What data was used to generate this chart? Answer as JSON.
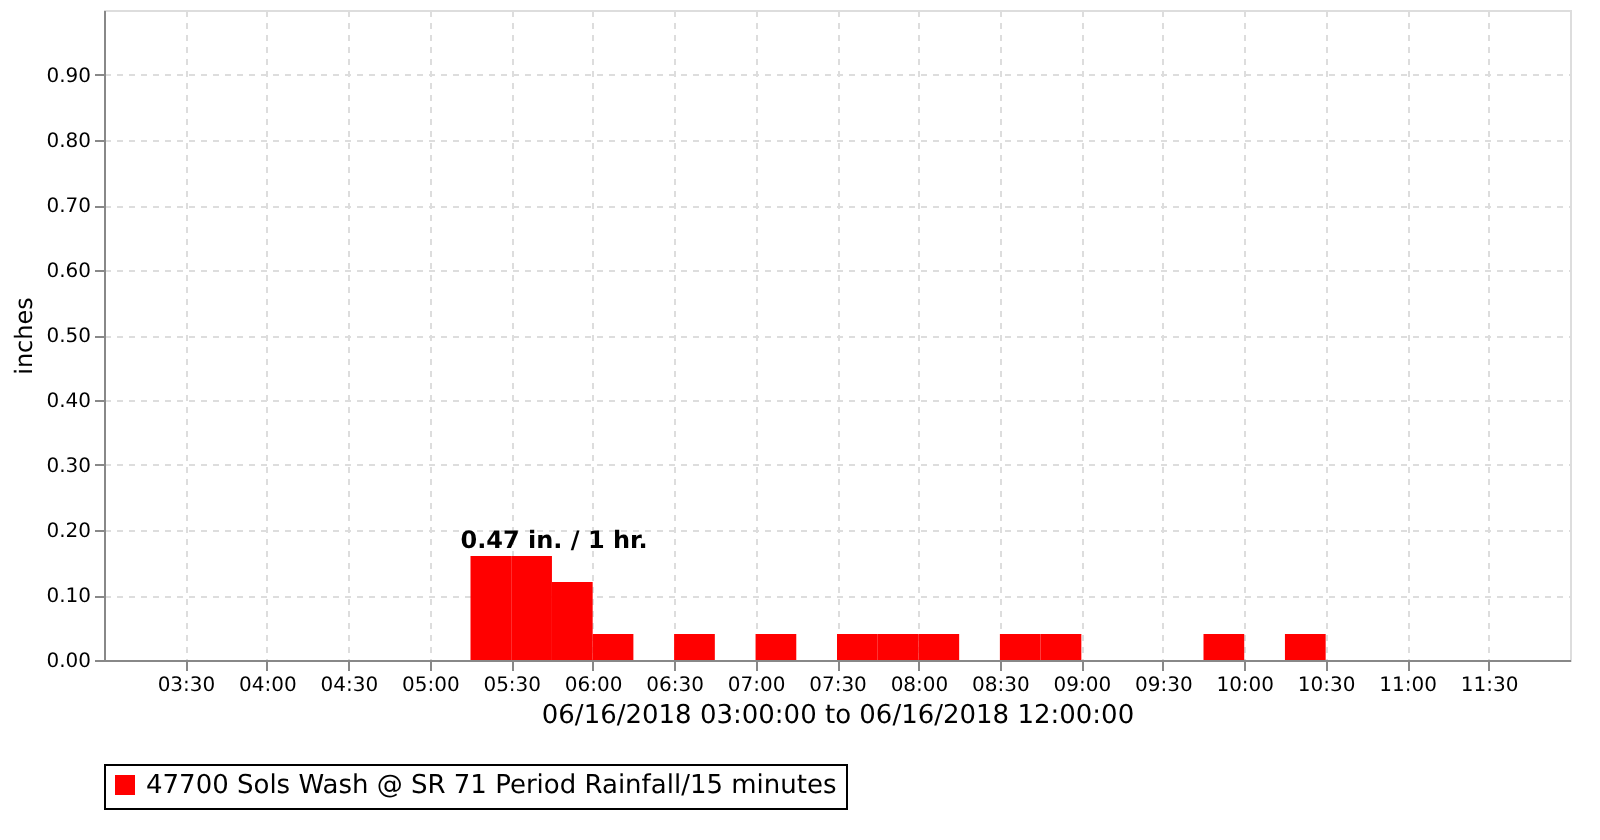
{
  "chart_data": {
    "type": "histogram",
    "xlabel": "06/16/2018 03:00:00 to 06/16/2018 12:00:00",
    "ylabel": "inches",
    "bins": [
      5.25,
      5.5,
      5.75,
      6.0,
      6.25,
      6.5,
      6.75,
      7.0,
      7.25,
      7.5,
      7.75,
      8.0,
      8.25,
      8.5,
      8.75,
      9.0,
      9.25,
      9.5,
      9.75,
      10.0,
      10.25,
      10.5
    ],
    "series": [
      {
        "name": "47700 Sols Wash @ SR 71 Period Rainfall/15 minutes",
        "color": "#ff0000",
        "values": [
          0.16,
          0.16,
          0.12,
          0.04,
          0,
          0.04,
          0,
          0.04,
          0,
          0.04,
          0.04,
          0.04,
          0,
          0.04,
          0.04,
          0,
          0,
          0,
          0.04,
          0,
          0.04
        ]
      }
    ],
    "xlim": [
      3,
      12
    ],
    "xticks": [
      {
        "value": 3.5,
        "label": "03:30"
      },
      {
        "value": 4,
        "label": "04:00"
      },
      {
        "value": 4.5,
        "label": "04:30"
      },
      {
        "value": 5,
        "label": "05:00"
      },
      {
        "value": 5.5,
        "label": "05:30"
      },
      {
        "value": 6,
        "label": "06:00"
      },
      {
        "value": 6.5,
        "label": "06:30"
      },
      {
        "value": 7,
        "label": "07:00"
      },
      {
        "value": 7.5,
        "label": "07:30"
      },
      {
        "value": 8,
        "label": "08:00"
      },
      {
        "value": 8.5,
        "label": "08:30"
      },
      {
        "value": 9,
        "label": "09:00"
      },
      {
        "value": 9.5,
        "label": "09:30"
      },
      {
        "value": 10,
        "label": "10:00"
      },
      {
        "value": 10.5,
        "label": "10:30"
      },
      {
        "value": 11,
        "label": "11:00"
      },
      {
        "value": 11.5,
        "label": "11:30"
      }
    ],
    "ylim": [
      0,
      1.0
    ],
    "yticks": [
      {
        "value": 0,
        "label": "0.00"
      },
      {
        "value": 0.1,
        "label": "0.10"
      },
      {
        "value": 0.2,
        "label": "0.20"
      },
      {
        "value": 0.3,
        "label": "0.30"
      },
      {
        "value": 0.4,
        "label": "0.40"
      },
      {
        "value": 0.5,
        "label": "0.50"
      },
      {
        "value": 0.6,
        "label": "0.60"
      },
      {
        "value": 0.7,
        "label": "0.70"
      },
      {
        "value": 0.8,
        "label": "0.80"
      },
      {
        "value": 0.9,
        "label": "0.90"
      }
    ],
    "annotations": [
      "0.47 in. / 1 hr."
    ],
    "grid": true,
    "legend": "bottom"
  }
}
